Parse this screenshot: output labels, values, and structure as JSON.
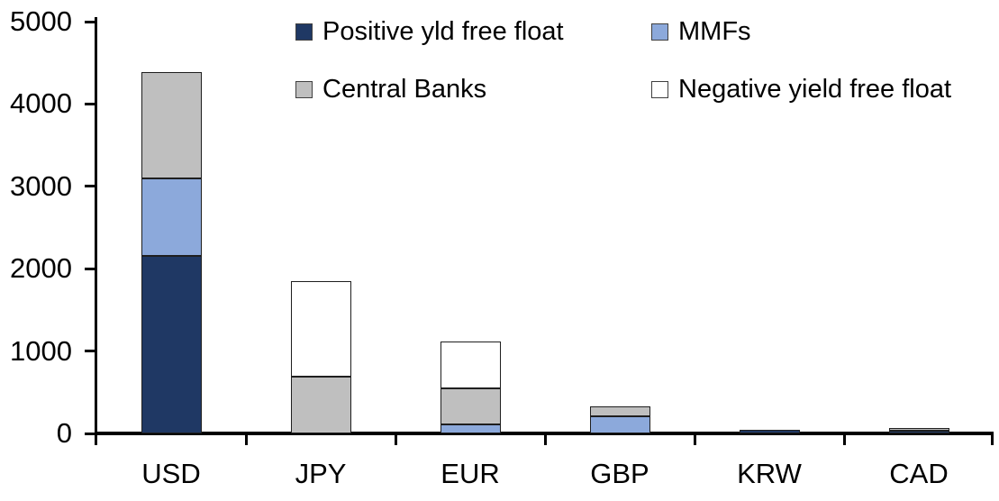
{
  "background": "#FFFFFF",
  "axis_color": "#000000",
  "chart_data": {
    "type": "bar",
    "stacked": true,
    "title": "",
    "xlabel": "",
    "ylabel": "",
    "categories": [
      "USD",
      "JPY",
      "EUR",
      "GBP",
      "KRW",
      "CAD"
    ],
    "series": [
      {
        "name": "Positive yld free float",
        "color": "#1F3864",
        "values": [
          2150,
          0,
          0,
          0,
          45,
          30
        ]
      },
      {
        "name": "MMFs",
        "color": "#8CA9DB",
        "values": [
          950,
          0,
          110,
          210,
          0,
          0
        ]
      },
      {
        "name": "Central Banks",
        "color": "#BFBFBF",
        "values": [
          1290,
          690,
          440,
          115,
          0,
          40
        ]
      },
      {
        "name": "Negative yield free float",
        "color": "#FFFFFF",
        "values": [
          0,
          1160,
          570,
          0,
          0,
          0
        ]
      }
    ],
    "totals": [
      4390,
      1850,
      1120,
      325,
      45,
      70
    ],
    "ylim": [
      0,
      5000
    ],
    "yticks": [
      0,
      1000,
      2000,
      3000,
      4000,
      5000
    ],
    "ytick_labels": [
      "0",
      "1000",
      "2000",
      "3000",
      "4000",
      "5000"
    ],
    "grid": false,
    "legend_position": "top",
    "legend_rows": [
      [
        "Positive yld free float",
        "MMFs"
      ],
      [
        "Central Banks",
        "Negative yield free float"
      ]
    ]
  }
}
